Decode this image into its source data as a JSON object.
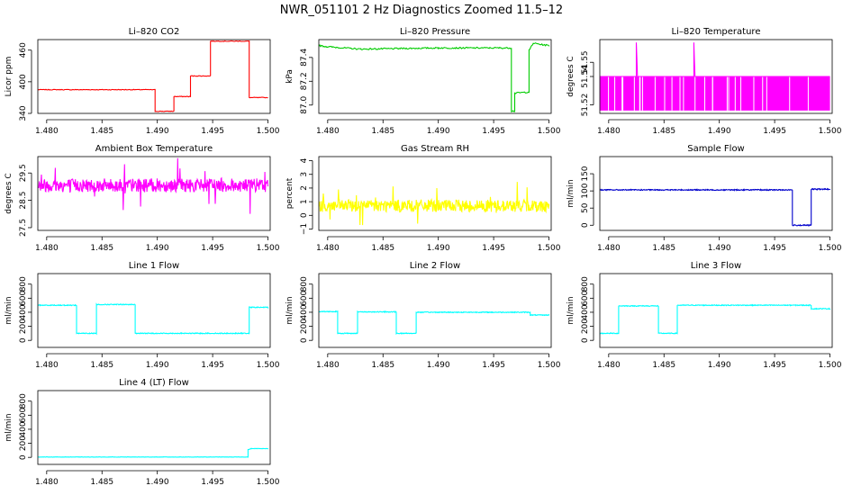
{
  "figure": {
    "title": "NWR_051101  2 Hz Diagnostics Zoomed 11.5–12"
  },
  "chart_data": [
    {
      "id": "co2",
      "type": "line",
      "title": "Li–820 CO2",
      "ylabel": "Licor ppm",
      "xlabel": "",
      "x_ticks": [
        "1.480",
        "1.485",
        "1.490",
        "1.495",
        "1.500"
      ],
      "y_ticks": [
        "340",
        "400",
        "460"
      ],
      "xlim": [
        1.4792,
        1.5002
      ],
      "ylim": [
        340,
        480
      ],
      "color": "#ff0000",
      "noise": 0.6,
      "series": [
        {
          "name": "CO2",
          "x": [
            1.4792,
            1.4898,
            1.4898,
            1.4915,
            1.4915,
            1.493,
            1.493,
            1.4948,
            1.4948,
            1.4983,
            1.4983,
            1.5
          ],
          "y": [
            385,
            385,
            344,
            344,
            372,
            372,
            411,
            411,
            477,
            477,
            370,
            370
          ]
        }
      ]
    },
    {
      "id": "pressure",
      "type": "line",
      "title": "Li–820 Pressure",
      "ylabel": "kPa",
      "xlabel": "",
      "x_ticks": [
        "1.480",
        "1.485",
        "1.490",
        "1.495",
        "1.500"
      ],
      "y_ticks": [
        "87.0",
        "87.2",
        "87.4"
      ],
      "xlim": [
        1.4792,
        1.5002
      ],
      "ylim": [
        86.93,
        87.55
      ],
      "color": "#00cc00",
      "noise": 0.006,
      "series": [
        {
          "name": "Pressure",
          "x": [
            1.4792,
            1.48,
            1.483,
            1.49,
            1.4966,
            1.4966,
            1.4969,
            1.4969,
            1.4982,
            1.4982,
            1.4986,
            1.4992,
            1.5
          ],
          "y": [
            87.5,
            87.49,
            87.47,
            87.48,
            87.48,
            86.95,
            86.95,
            87.1,
            87.11,
            87.46,
            87.52,
            87.51,
            87.5
          ]
        }
      ]
    },
    {
      "id": "licor_temp",
      "type": "line",
      "title": "Li–820 Temperature",
      "ylabel": "degrees C",
      "xlabel": "",
      "x_ticks": [
        "1.480",
        "1.485",
        "1.490",
        "1.495",
        "1.500"
      ],
      "y_ticks": [
        "51.52",
        "51.54",
        "51.55"
      ],
      "xlim": [
        1.4792,
        1.5002
      ],
      "ylim": [
        51.514,
        51.566
      ],
      "color": "#ff00ff",
      "noise": 0,
      "series": [
        {
          "name": "Temperature",
          "x": [
            1.4792,
            1.4825,
            1.4825,
            1.4826,
            1.4877,
            1.4877,
            1.4878,
            1.5
          ],
          "y": [
            51.54,
            51.54,
            51.564,
            51.54,
            51.54,
            51.564,
            51.54,
            51.54
          ],
          "band": [
            51.516,
            51.54
          ]
        }
      ]
    },
    {
      "id": "ambient_box",
      "type": "line",
      "title": "Ambient Box Temperature",
      "ylabel": "degrees C",
      "xlabel": "",
      "x_ticks": [
        "1.480",
        "1.485",
        "1.490",
        "1.495",
        "1.500"
      ],
      "y_ticks": [
        "27.5",
        "28.5",
        "29.5"
      ],
      "xlim": [
        1.4792,
        1.5002
      ],
      "ylim": [
        27.4,
        30.1
      ],
      "color": "#ff00ff",
      "noise": 0.25,
      "series": [
        {
          "name": "Ambient",
          "x": [
            1.4792,
            1.5
          ],
          "y": [
            29.05,
            29.05
          ]
        }
      ]
    },
    {
      "id": "rh",
      "type": "line",
      "title": "Gas Stream RH",
      "ylabel": "percent",
      "xlabel": "",
      "x_ticks": [
        "1.480",
        "1.485",
        "1.490",
        "1.495",
        "1.500"
      ],
      "y_ticks": [
        "−1",
        "0",
        "1",
        "2",
        "3",
        "4"
      ],
      "xlim": [
        1.4792,
        1.5002
      ],
      "ylim": [
        -1.1,
        4.3
      ],
      "color": "#ffff00",
      "noise": 0.45,
      "series": [
        {
          "name": "RH",
          "x": [
            1.4792,
            1.5
          ],
          "y": [
            0.7,
            0.7
          ]
        }
      ]
    },
    {
      "id": "sample_flow",
      "type": "line",
      "title": "Sample Flow",
      "ylabel": "ml/min",
      "xlabel": "",
      "x_ticks": [
        "1.480",
        "1.485",
        "1.490",
        "1.495",
        "1.500"
      ],
      "y_ticks": [
        "0",
        "50",
        "100",
        "150"
      ],
      "xlim": [
        1.4792,
        1.5002
      ],
      "ylim": [
        -15,
        200
      ],
      "color": "#0000cc",
      "noise": 1.5,
      "series": [
        {
          "name": "Sample",
          "x": [
            1.4792,
            1.4966,
            1.4966,
            1.4983,
            1.4983,
            1.5
          ],
          "y": [
            103,
            103,
            0,
            0,
            105,
            105
          ]
        }
      ]
    },
    {
      "id": "line1",
      "type": "line",
      "title": "Line 1 Flow",
      "ylabel": "ml/min",
      "xlabel": "",
      "x_ticks": [
        "1.480",
        "1.485",
        "1.490",
        "1.495",
        "1.500"
      ],
      "y_ticks": [
        "0",
        "200",
        "400",
        "600",
        "800"
      ],
      "xlim": [
        1.4792,
        1.5002
      ],
      "ylim": [
        -100,
        950
      ],
      "color": "#00ffff",
      "noise": 6,
      "series": [
        {
          "name": "Line1",
          "x": [
            1.4792,
            1.4827,
            1.4827,
            1.4845,
            1.4845,
            1.488,
            1.488,
            1.4983,
            1.4983,
            1.5
          ],
          "y": [
            500,
            500,
            100,
            100,
            510,
            510,
            100,
            100,
            470,
            470
          ]
        }
      ]
    },
    {
      "id": "line2",
      "type": "line",
      "title": "Line 2 Flow",
      "ylabel": "ml/min",
      "xlabel": "",
      "x_ticks": [
        "1.480",
        "1.485",
        "1.490",
        "1.495",
        "1.500"
      ],
      "y_ticks": [
        "0",
        "200",
        "400",
        "600",
        "800"
      ],
      "xlim": [
        1.4792,
        1.5002
      ],
      "ylim": [
        -100,
        950
      ],
      "color": "#00ffff",
      "noise": 6,
      "series": [
        {
          "name": "Line2",
          "x": [
            1.4792,
            1.4809,
            1.4809,
            1.4827,
            1.4827,
            1.4862,
            1.4862,
            1.488,
            1.488,
            1.4983,
            1.4983,
            1.5
          ],
          "y": [
            410,
            410,
            100,
            100,
            405,
            405,
            100,
            100,
            400,
            400,
            360,
            360
          ]
        }
      ]
    },
    {
      "id": "line3",
      "type": "line",
      "title": "Line 3 Flow",
      "ylabel": "ml/min",
      "xlabel": "",
      "x_ticks": [
        "1.480",
        "1.485",
        "1.490",
        "1.495",
        "1.500"
      ],
      "y_ticks": [
        "0",
        "200",
        "400",
        "600",
        "800"
      ],
      "xlim": [
        1.4792,
        1.5002
      ],
      "ylim": [
        -100,
        950
      ],
      "color": "#00ffff",
      "noise": 6,
      "series": [
        {
          "name": "Line3",
          "x": [
            1.4792,
            1.4809,
            1.4809,
            1.4845,
            1.4845,
            1.4862,
            1.4862,
            1.4983,
            1.4983,
            1.5
          ],
          "y": [
            100,
            100,
            490,
            490,
            100,
            100,
            500,
            500,
            450,
            450
          ]
        }
      ]
    },
    {
      "id": "line4",
      "type": "line",
      "title": "Line 4 (LT) Flow",
      "ylabel": "ml/min",
      "xlabel": "",
      "x_ticks": [
        "1.480",
        "1.485",
        "1.490",
        "1.495",
        "1.500"
      ],
      "y_ticks": [
        "0",
        "200",
        "400",
        "600",
        "800"
      ],
      "xlim": [
        1.4792,
        1.5002
      ],
      "ylim": [
        -100,
        950
      ],
      "color": "#00ffff",
      "noise": 2,
      "series": [
        {
          "name": "Line4",
          "x": [
            1.4792,
            1.4982,
            1.4982,
            1.4985,
            1.5
          ],
          "y": [
            5,
            5,
            110,
            125,
            125
          ]
        }
      ]
    }
  ]
}
